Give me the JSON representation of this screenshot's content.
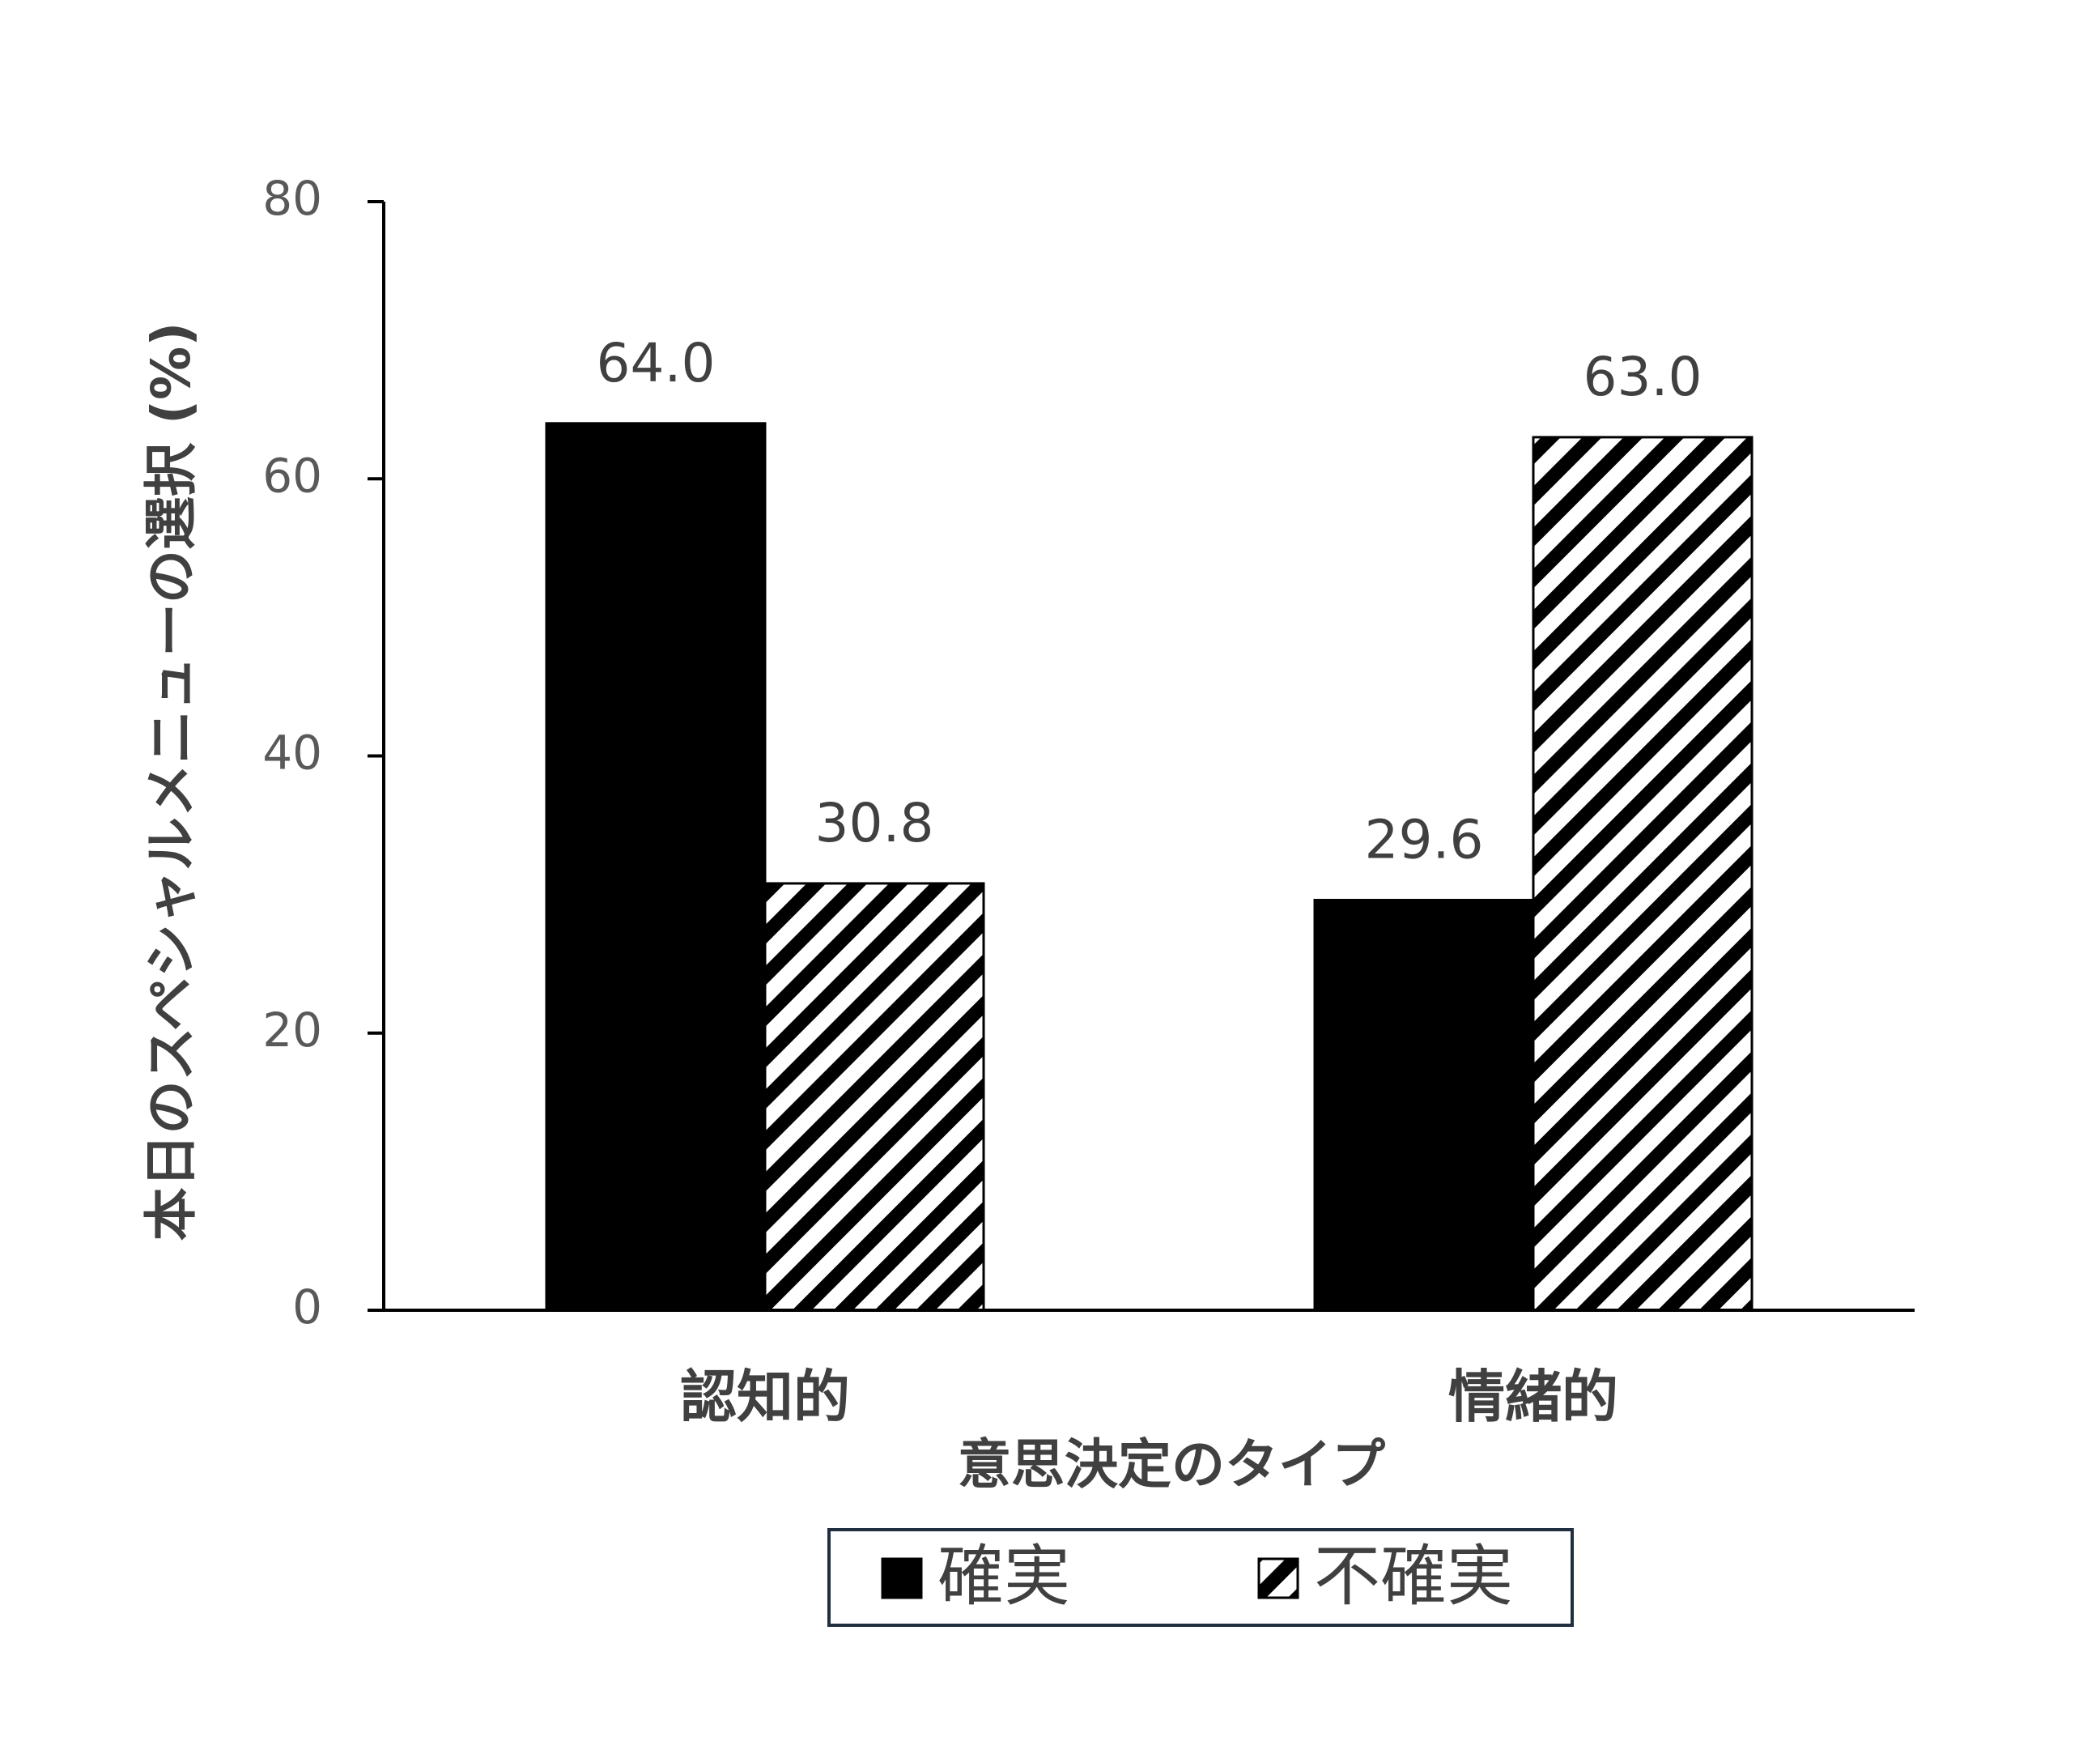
{
  "chart_data": {
    "type": "bar",
    "y_label": "本日のスペシャルメニューの選択 (%)",
    "x_label": "意思決定のタイプ",
    "categories": [
      "認知的",
      "情緒的"
    ],
    "series": [
      {
        "name": "確実",
        "color": "#000000",
        "values": [
          64.0,
          29.6
        ],
        "value_labels": [
          "64.0",
          "29.6"
        ]
      },
      {
        "name": "不確実",
        "color": "#000000",
        "pattern": "diagonal-hatch",
        "values": [
          30.8,
          63.0
        ],
        "value_labels": [
          "30.8",
          "63.0"
        ]
      }
    ],
    "ylim": [
      0,
      80
    ],
    "yticks": [
      0,
      20,
      40,
      60,
      80
    ],
    "grid": false,
    "legend": "bottom"
  }
}
